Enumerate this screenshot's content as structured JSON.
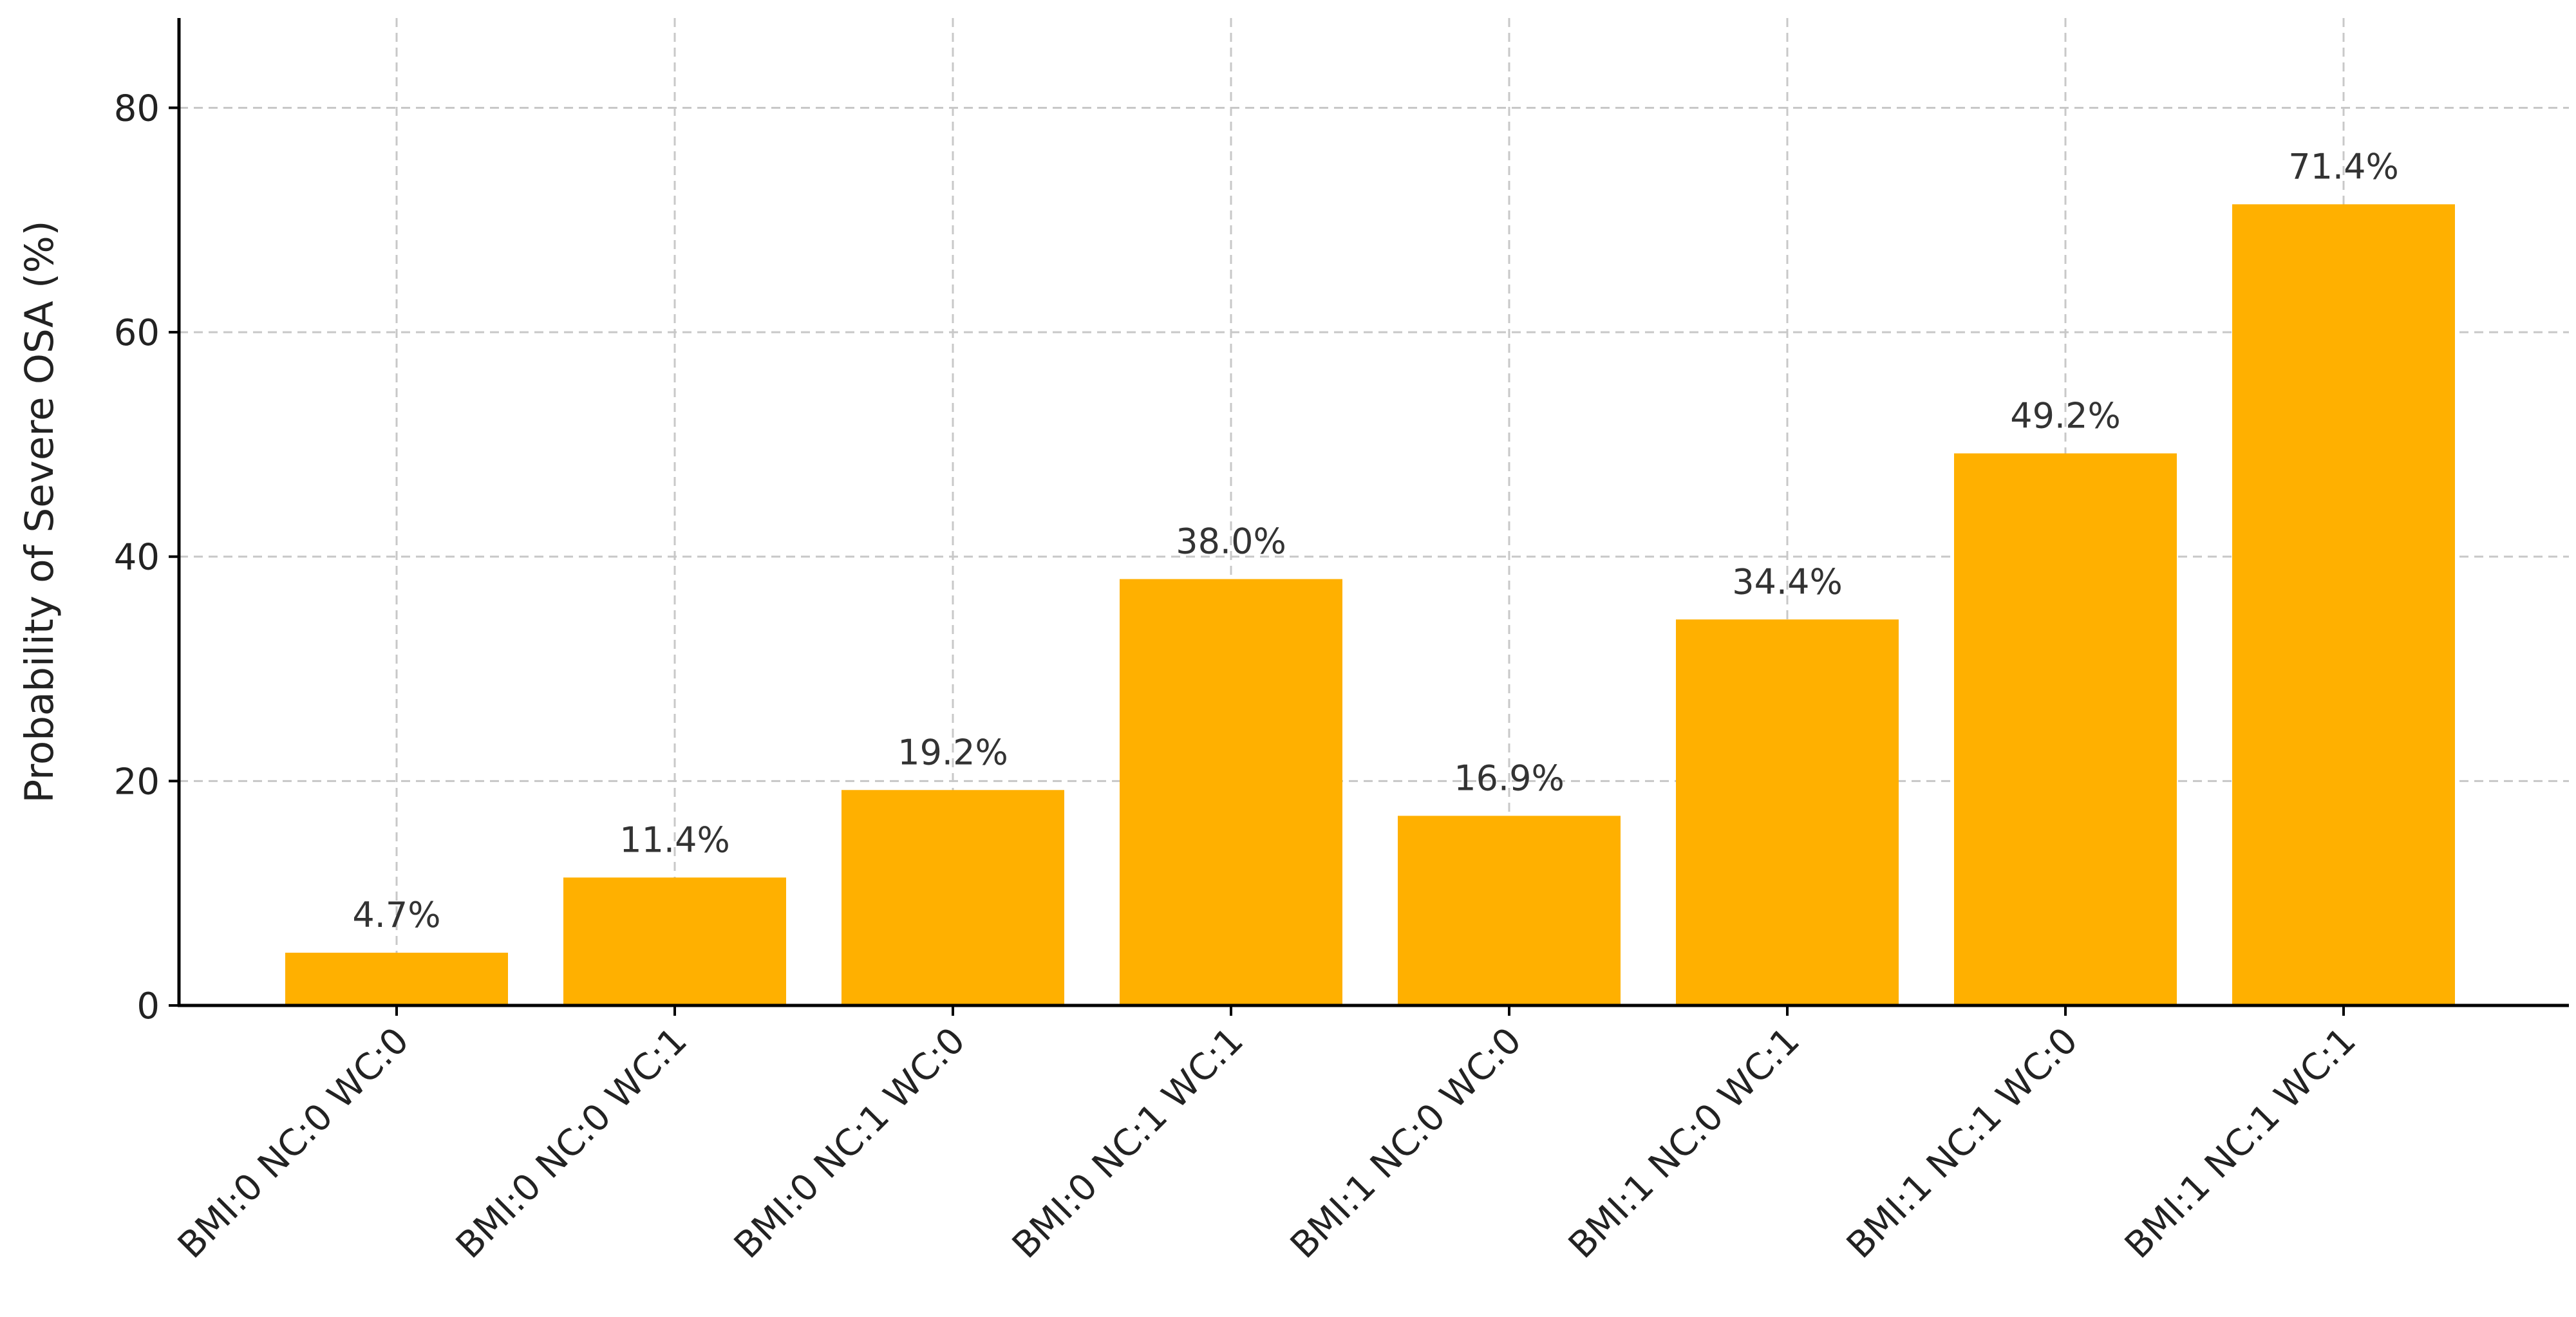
{
  "chart_data": {
    "type": "bar",
    "categories": [
      "BMI:0 NC:0 WC:0",
      "BMI:0 NC:0 WC:1",
      "BMI:0 NC:1 WC:0",
      "BMI:0 NC:1 WC:1",
      "BMI:1 NC:0 WC:0",
      "BMI:1 NC:0 WC:1",
      "BMI:1 NC:1 WC:0",
      "BMI:1 NC:1 WC:1"
    ],
    "values": [
      4.7,
      11.4,
      19.2,
      38.0,
      16.9,
      34.4,
      49.2,
      71.4
    ],
    "data_labels": [
      "4.7%",
      "11.4%",
      "19.2%",
      "38.0%",
      "16.9%",
      "34.4%",
      "49.2%",
      "71.4%"
    ],
    "title": "",
    "xlabel": "",
    "ylabel": "Probability of Severe OSA (%)",
    "ylim": [
      0,
      88
    ],
    "yticks": [
      0,
      20,
      40,
      60,
      80
    ],
    "grid": true,
    "bar_color": "#FFB000"
  }
}
